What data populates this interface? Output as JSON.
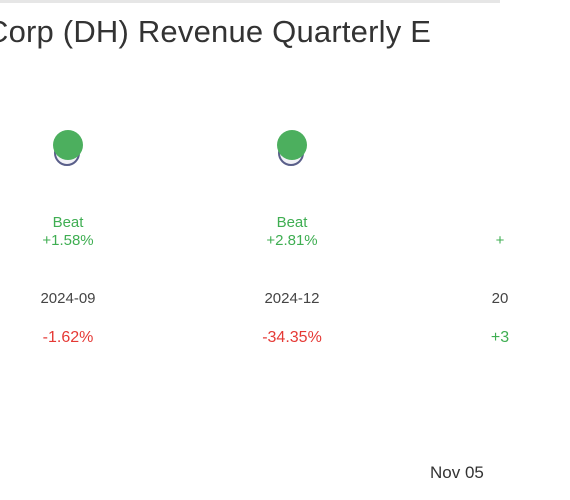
{
  "title": "Corp (DH) Revenue Quarterly E",
  "footer_date": "Nov 05",
  "colors": {
    "beat": "#3fae52",
    "negative": "#e53935",
    "positive": "#3fae52",
    "estimate_marker": "#5a5f8a",
    "actual_marker": "#4caf5e"
  },
  "chart_data": {
    "type": "scatter",
    "title": "Corp (DH) Revenue Quarterly E",
    "categories": [
      "2024-09",
      "2024-12",
      "20"
    ],
    "columns": [
      {
        "period": "2024-09",
        "result": "Beat",
        "surprise": "+1.58%",
        "yoy": "-1.62%",
        "yoy_sign": "negative",
        "show_marker": true
      },
      {
        "period": "2024-12",
        "result": "Beat",
        "surprise": "+2.81%",
        "yoy": "-34.35%",
        "yoy_sign": "negative",
        "show_marker": true
      },
      {
        "period": "20",
        "result": "",
        "surprise": "+",
        "yoy": "+3",
        "yoy_sign": "positive",
        "show_marker": false
      }
    ]
  }
}
